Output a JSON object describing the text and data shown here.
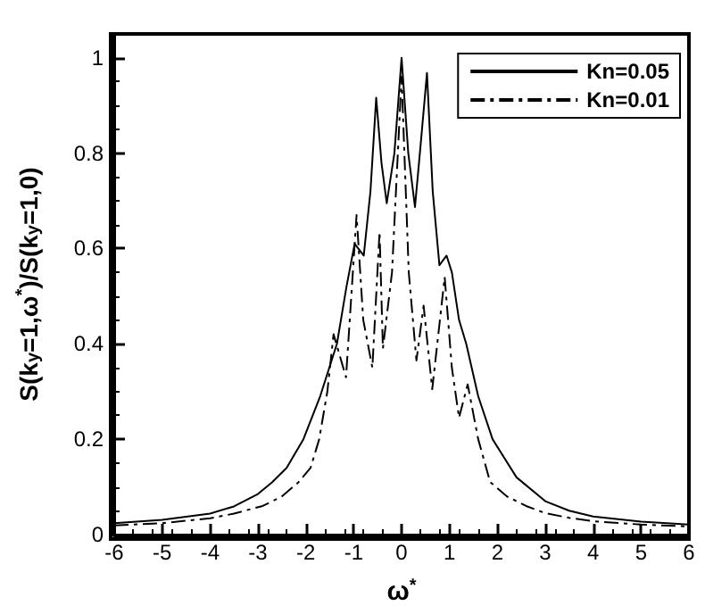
{
  "chart_data": {
    "type": "line",
    "xlabel": "ω$^{*}$",
    "ylabel": "S(k$_{y}$=1,ω$^{*}$)/S(k$_{y}$=1,0)",
    "xlim": [
      -6,
      6
    ],
    "ylim": [
      0,
      1.05
    ],
    "xticks": [
      -6,
      -5,
      -4,
      -3,
      -2,
      -1,
      0,
      1,
      2,
      3,
      4,
      5,
      6
    ],
    "yticks": [
      0,
      0.2,
      0.4,
      0.6,
      0.8,
      1
    ],
    "legend": "top right",
    "grid": false,
    "series": [
      {
        "name": "Kn=0.05",
        "color": "#000000",
        "line_style": "solid",
        "x": [
          -6,
          -5,
          -4,
          -3.5,
          -3,
          -2.7,
          -2.4,
          -2.05,
          -1.7,
          -1.35,
          -1.15,
          -0.98,
          -0.79,
          -0.65,
          -0.53,
          -0.42,
          -0.31,
          -0.15,
          0,
          0.14,
          0.28,
          0.4,
          0.53,
          0.65,
          0.79,
          0.94,
          1.05,
          1.2,
          1.35,
          1.6,
          1.9,
          2.4,
          3,
          3.5,
          4,
          5,
          6
        ],
        "values": [
          0.024,
          0.031,
          0.044,
          0.059,
          0.085,
          0.11,
          0.14,
          0.2,
          0.29,
          0.4,
          0.52,
          0.61,
          0.585,
          0.72,
          0.916,
          0.78,
          0.695,
          0.8,
          1,
          0.8,
          0.687,
          0.82,
          0.968,
          0.72,
          0.565,
          0.585,
          0.55,
          0.45,
          0.4,
          0.29,
          0.2,
          0.12,
          0.07,
          0.05,
          0.038,
          0.027,
          0.021
        ]
      },
      {
        "name": "Kn=0.01",
        "color": "#000000",
        "line_style": "dashdot",
        "x": [
          -6,
          -5,
          -4,
          -3.5,
          -2.9,
          -2.5,
          -2.15,
          -1.9,
          -1.72,
          -1.55,
          -1.42,
          -1.16,
          -0.94,
          -0.8,
          -0.61,
          -0.46,
          -0.39,
          -0.2,
          0,
          0.15,
          0.31,
          0.46,
          0.64,
          0.9,
          1.05,
          1.2,
          1.38,
          1.6,
          1.85,
          2.2,
          2.6,
          3,
          3.5,
          4,
          5,
          6
        ],
        "values": [
          0.019,
          0.024,
          0.034,
          0.044,
          0.06,
          0.08,
          0.11,
          0.14,
          0.2,
          0.3,
          0.42,
          0.33,
          0.67,
          0.45,
          0.35,
          0.635,
          0.39,
          0.55,
          0.96,
          0.55,
          0.365,
          0.48,
          0.305,
          0.54,
          0.35,
          0.245,
          0.315,
          0.2,
          0.11,
          0.08,
          0.06,
          0.045,
          0.035,
          0.028,
          0.021,
          0.017
        ]
      }
    ]
  }
}
